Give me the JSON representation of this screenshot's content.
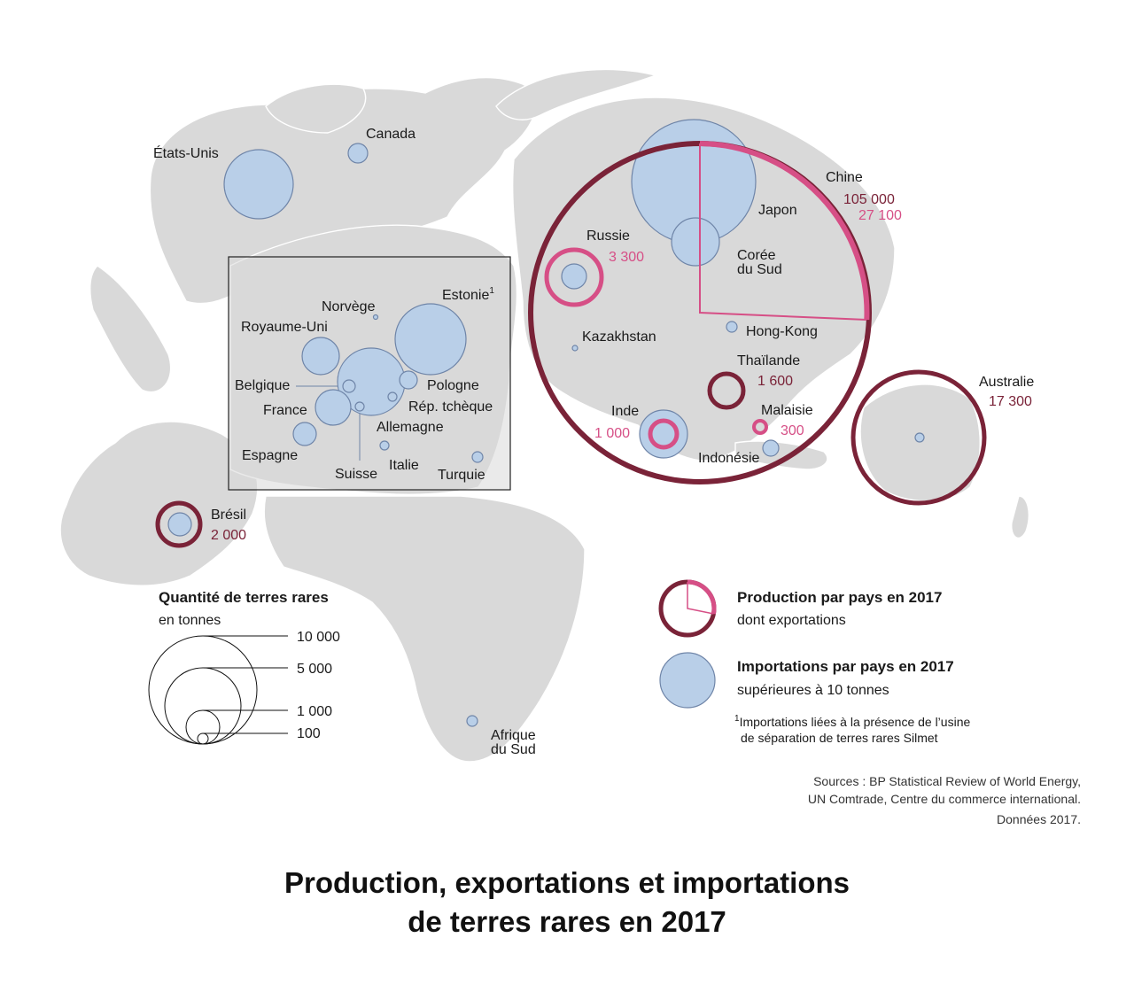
{
  "title": {
    "line1": "Production, exportations et importations",
    "line2": "de terres rares en 2017"
  },
  "colors": {
    "production": "#7a2338",
    "exports": "#d64f86",
    "imports_fill": "#b9cfe8",
    "imports_stroke": "#6f85a8",
    "land": "#d9d9d9"
  },
  "producers": [
    {
      "country": "Chine",
      "production": "105 000",
      "exports": "27 100"
    },
    {
      "country": "Australie",
      "production": "17 300"
    },
    {
      "country": "Russie",
      "exports": "3 300"
    },
    {
      "country": "Brésil",
      "production": "2 000"
    },
    {
      "country": "Thaïlande",
      "production": "1 600"
    },
    {
      "country": "Inde",
      "exports": "1 000"
    },
    {
      "country": "Malaisie",
      "exports": "300"
    }
  ],
  "importers": [
    "États-Unis",
    "Canada",
    "Japon",
    "Corée du Sud",
    "Hong-Kong",
    "Kazakhstan",
    "Indonésie",
    "Afrique du Sud",
    "Norvège",
    "Estonie",
    "Royaume-Uni",
    "Belgique",
    "Pologne",
    "France",
    "Rép. tchèque",
    "Allemagne",
    "Espagne",
    "Italie",
    "Suisse",
    "Turquie"
  ],
  "labels": {
    "etats_unis": "États-Unis",
    "canada": "Canada",
    "chine": "Chine",
    "japon": "Japon",
    "coree1": "Corée",
    "coree2": "du Sud",
    "russie": "Russie",
    "hongkong": "Hong-Kong",
    "kazakhstan": "Kazakhstan",
    "thailande": "Thaïlande",
    "inde": "Inde",
    "malaisie": "Malaisie",
    "indonesie": "Indonésie",
    "australie": "Australie",
    "bresil": "Brésil",
    "afrique1": "Afrique",
    "afrique2": "du Sud",
    "norvege": "Norvège",
    "estonie": "Estonie",
    "estonie_sup": "1",
    "royaume_uni": "Royaume-Uni",
    "belgique": "Belgique",
    "pologne": "Pologne",
    "france": "France",
    "rep_tcheque": "Rép. tchèque",
    "allemagne": "Allemagne",
    "espagne": "Espagne",
    "italie": "Italie",
    "suisse": "Suisse",
    "turquie": "Turquie"
  },
  "values": {
    "chine_prod": "105 000",
    "chine_exp": "27 100",
    "russie": "3 300",
    "thailande": "1 600",
    "inde": "1 000",
    "malaisie": "300",
    "australie": "17 300",
    "bresil": "2 000"
  },
  "size_legend": {
    "title": "Quantité de terres rares",
    "subtitle": "en tonnes",
    "v10000": "10 000",
    "v5000": "5 000",
    "v1000": "1 000",
    "v100": "100"
  },
  "symbol_legend": {
    "production_title": "Production par pays en 2017",
    "production_sub": "dont exportations",
    "imports_title": "Importations par pays en 2017",
    "imports_sub": "supérieures à 10 tonnes"
  },
  "footnote": {
    "marker": "1",
    "line1": "Importations liées à la présence de l’usine",
    "line2": "de séparation de terres rares Silmet"
  },
  "sources": {
    "line1": "Sources : BP Statistical Review of World Energy,",
    "line2": "UN Comtrade, Centre du commerce international.",
    "line3": "Données 2017."
  }
}
